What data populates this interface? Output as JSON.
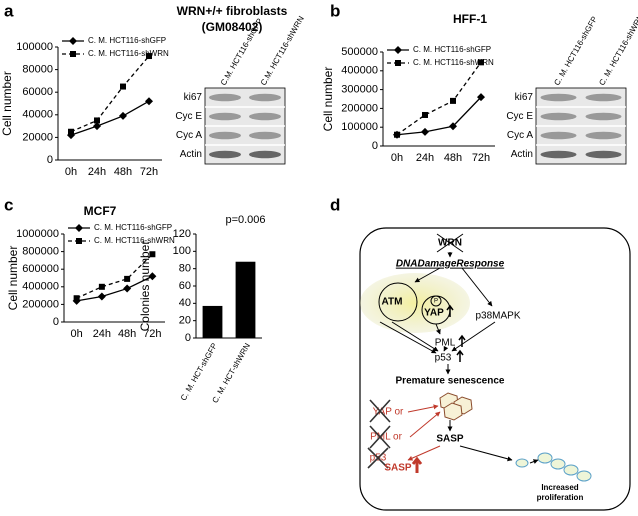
{
  "panels": [
    "a",
    "b",
    "c",
    "d"
  ],
  "chart_data": [
    {
      "type": "line",
      "title": "WRN+/+ fibroblasts",
      "subtitle": "(GM08402)",
      "ylabel": "Cell number",
      "categories": [
        "0h",
        "24h",
        "48h",
        "72h"
      ],
      "series": [
        {
          "name": "C. M. HCT116-shGFP",
          "color": "#000000",
          "style": "solid",
          "marker": "diamond",
          "values": [
            22000,
            30000,
            39000,
            52000
          ]
        },
        {
          "name": "C. M. HCT116-shWRN",
          "color": "#000000",
          "style": "dashed",
          "marker": "square",
          "values": [
            25000,
            35000,
            65000,
            92000
          ]
        }
      ],
      "ylim": [
        0,
        100000
      ],
      "yticks": [
        0,
        20000,
        40000,
        60000,
        80000,
        100000
      ]
    },
    {
      "type": "line",
      "title": "HFF-1",
      "ylabel": "Cell number",
      "categories": [
        "0h",
        "24h",
        "48h",
        "72h"
      ],
      "series": [
        {
          "name": "C. M. HCT116-shGFP",
          "color": "#000000",
          "style": "solid",
          "marker": "diamond",
          "values": [
            60000,
            75000,
            105000,
            260000
          ]
        },
        {
          "name": "C. M. HCT116-shWRN",
          "color": "#000000",
          "style": "dashed",
          "marker": "square",
          "values": [
            60000,
            165000,
            240000,
            445000
          ]
        }
      ],
      "ylim": [
        0,
        500000
      ],
      "yticks": [
        0,
        100000,
        200000,
        300000,
        400000,
        500000
      ]
    },
    {
      "type": "line",
      "title": "MCF7",
      "ylabel": "Cell number",
      "categories": [
        "0h",
        "24h",
        "48h",
        "72h"
      ],
      "series": [
        {
          "name": "C. M. HCT116-shGFP",
          "color": "#000000",
          "style": "solid",
          "marker": "diamond",
          "values": [
            240000,
            290000,
            380000,
            520000
          ]
        },
        {
          "name": "C. M. HCT116-shWRN",
          "color": "#000000",
          "style": "dashed",
          "marker": "square",
          "values": [
            270000,
            400000,
            490000,
            770000
          ]
        }
      ],
      "ylim": [
        0,
        1000000
      ],
      "yticks": [
        0,
        200000,
        400000,
        600000,
        800000,
        1000000
      ]
    },
    {
      "type": "bar",
      "ylabel": "Colonies number",
      "annotation": "p=0.006",
      "categories": [
        "C. M. HCT-shGFP",
        "C. M. HCT-shWRN"
      ],
      "values": [
        37,
        88
      ],
      "color": "#000000",
      "ylim": [
        0,
        120
      ],
      "yticks": [
        0,
        20,
        40,
        60,
        80,
        100,
        120
      ]
    }
  ],
  "blots": [
    {
      "columns": [
        "C.M. HCT116-shGFP",
        "C.M. HCT116-shWRN"
      ],
      "rows": [
        "ki67",
        "Cyc E",
        "Cyc A",
        "Actin"
      ]
    },
    {
      "columns": [
        "C. M. HCT116-shGFP",
        "C. M. HCT116-shWRN"
      ],
      "rows": [
        "ki67",
        "Cyc E",
        "Cyc A",
        "Actin"
      ]
    }
  ],
  "diagram": {
    "wrn": "WRN",
    "ddr": "DNADamageResponse",
    "atm": "ATM",
    "yap": "YAP",
    "p": "P",
    "p38": "p38MAPK",
    "pml": "PML",
    "p53": "p53",
    "senescence": "Premature senescence",
    "inhibitors": [
      "YAP or",
      "PML or",
      "p53"
    ],
    "sasp": "SASP",
    "sasp2": "SASP",
    "proliferation": [
      "Increased",
      "proliferation"
    ]
  }
}
